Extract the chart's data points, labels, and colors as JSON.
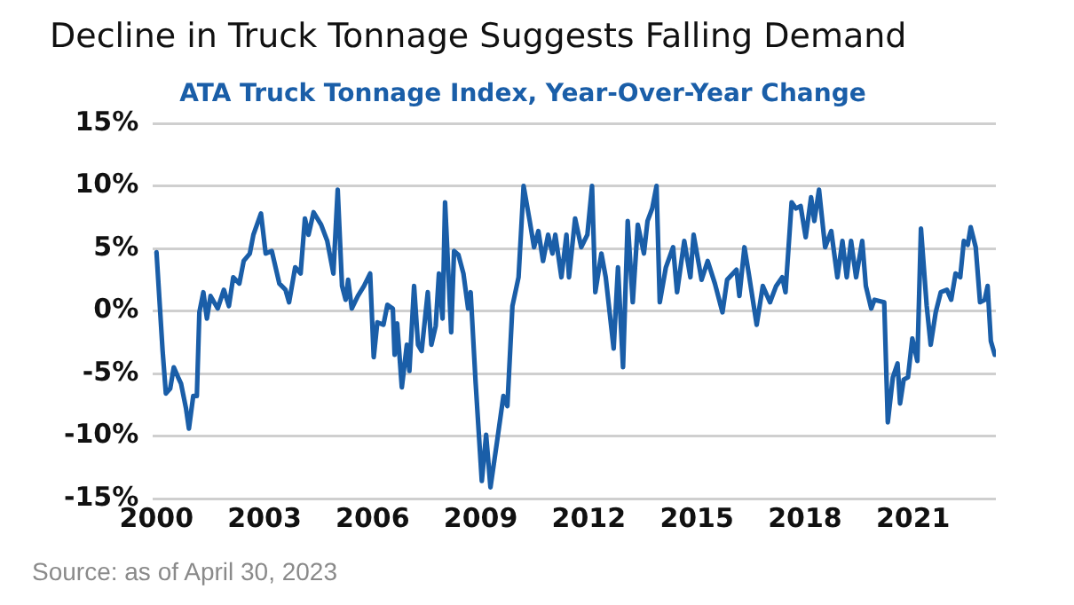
{
  "chart_data": {
    "type": "line",
    "title": "Decline in Truck Tonnage Suggests Falling Demand",
    "subtitle": "ATA Truck Tonnage Index, Year-Over-Year Change",
    "annotations": [
      "Source: as of April 30, 2023"
    ],
    "xlim": [
      1999.9,
      2023.3
    ],
    "xticks": [
      2000,
      2003,
      2006,
      2009,
      2012,
      2015,
      2018,
      2021
    ],
    "ylim": [
      -15,
      15
    ],
    "yticks": [
      {
        "value": -15,
        "label": "-15%"
      },
      {
        "value": -10,
        "label": "-10%"
      },
      {
        "value": -5,
        "label": "-5%"
      },
      {
        "value": 0,
        "label": "0%"
      },
      {
        "value": 5,
        "label": "5%"
      },
      {
        "value": 10,
        "label": "10%"
      },
      {
        "value": 15,
        "label": "15%"
      }
    ],
    "grid": "y",
    "legend": false,
    "marker": "none",
    "line_style": "solid",
    "x": [
      2000.0,
      2000.17,
      2000.26,
      2000.38,
      2000.48,
      2000.6,
      2000.68,
      2000.82,
      2000.9,
      2001.02,
      2001.12,
      2001.19,
      2001.3,
      2001.4,
      2001.5,
      2001.7,
      2001.87,
      2002.01,
      2002.13,
      2002.3,
      2002.42,
      2002.59,
      2002.69,
      2002.9,
      2003.03,
      2003.2,
      2003.41,
      2003.58,
      2003.68,
      2003.85,
      2004.0,
      2004.12,
      2004.22,
      2004.36,
      2004.57,
      2004.74,
      2004.91,
      2005.03,
      2005.15,
      2005.25,
      2005.32,
      2005.42,
      2005.59,
      2005.76,
      2005.93,
      2006.03,
      2006.13,
      2006.3,
      2006.41,
      2006.56,
      2006.61,
      2006.68,
      2006.81,
      2006.95,
      2007.02,
      2007.15,
      2007.26,
      2007.36,
      2007.53,
      2007.63,
      2007.75,
      2007.84,
      2007.94,
      2008.01,
      2008.18,
      2008.26,
      2008.38,
      2008.52,
      2008.65,
      2008.72,
      2008.86,
      2009.03,
      2009.15,
      2009.27,
      2009.45,
      2009.63,
      2009.74,
      2009.88,
      2010.05,
      2010.19,
      2010.36,
      2010.48,
      2010.6,
      2010.73,
      2010.87,
      2010.99,
      2011.07,
      2011.24,
      2011.38,
      2011.45,
      2011.62,
      2011.79,
      2011.96,
      2012.09,
      2012.18,
      2012.35,
      2012.47,
      2012.69,
      2012.81,
      2012.95,
      2013.08,
      2013.22,
      2013.36,
      2013.53,
      2013.63,
      2013.76,
      2013.88,
      2013.97,
      2014.14,
      2014.34,
      2014.45,
      2014.65,
      2014.82,
      2014.91,
      2015.13,
      2015.3,
      2015.5,
      2015.71,
      2015.84,
      2016.1,
      2016.18,
      2016.32,
      2016.44,
      2016.66,
      2016.83,
      2017.03,
      2017.2,
      2017.37,
      2017.46,
      2017.63,
      2017.75,
      2017.88,
      2018.02,
      2018.17,
      2018.26,
      2018.39,
      2018.56,
      2018.73,
      2018.9,
      2019.04,
      2019.16,
      2019.28,
      2019.42,
      2019.59,
      2019.69,
      2019.84,
      2019.93,
      2020.2,
      2020.3,
      2020.44,
      2020.57,
      2020.64,
      2020.74,
      2020.86,
      2020.98,
      2021.12,
      2021.22,
      2021.38,
      2021.49,
      2021.63,
      2021.77,
      2021.94,
      2022.06,
      2022.18,
      2022.31,
      2022.41,
      2022.52,
      2022.6,
      2022.74,
      2022.86,
      2022.99,
      2023.07,
      2023.16,
      2023.27
    ],
    "series": [
      {
        "color": "#1a5ea8",
        "values": [
          4.7,
          -3.2,
          -6.6,
          -6.2,
          -4.5,
          -5.3,
          -5.8,
          -7.8,
          -9.4,
          -6.8,
          -6.8,
          -0.1,
          1.5,
          -0.6,
          1.2,
          0.2,
          1.7,
          0.4,
          2.7,
          2.2,
          4.0,
          4.6,
          6.1,
          7.8,
          4.6,
          4.8,
          2.2,
          1.7,
          0.7,
          3.5,
          3.0,
          7.4,
          6.1,
          7.9,
          6.9,
          5.6,
          3.0,
          9.7,
          2.0,
          0.9,
          2.5,
          0.2,
          1.2,
          2.0,
          3.0,
          -3.7,
          -0.9,
          -1.1,
          0.5,
          0.2,
          -3.5,
          -1.0,
          -6.1,
          -2.7,
          -4.8,
          2.0,
          -2.7,
          -3.2,
          1.5,
          -2.7,
          -1.2,
          3.0,
          -0.6,
          8.7,
          -1.7,
          4.8,
          4.5,
          3.0,
          0.2,
          1.5,
          -5.8,
          -13.6,
          -9.9,
          -14.1,
          -10.5,
          -6.8,
          -7.6,
          0.4,
          2.7,
          10.0,
          7.2,
          5.1,
          6.4,
          4.0,
          6.1,
          4.6,
          6.1,
          2.7,
          6.1,
          2.7,
          7.4,
          5.1,
          6.1,
          10.0,
          1.5,
          4.6,
          2.7,
          -3.0,
          3.5,
          -4.5,
          7.2,
          0.7,
          6.9,
          4.6,
          7.2,
          8.2,
          10.0,
          0.7,
          3.5,
          5.1,
          1.5,
          5.6,
          2.7,
          6.1,
          2.5,
          4.0,
          2.2,
          -0.1,
          2.5,
          3.3,
          1.2,
          5.1,
          3.0,
          -1.1,
          2.0,
          0.7,
          2.0,
          2.7,
          1.5,
          8.7,
          8.2,
          8.4,
          5.9,
          9.1,
          7.2,
          9.7,
          5.1,
          6.4,
          2.7,
          5.6,
          2.7,
          5.6,
          2.7,
          5.6,
          2.0,
          0.2,
          0.9,
          0.7,
          -8.9,
          -5.3,
          -4.2,
          -7.4,
          -5.5,
          -5.3,
          -2.2,
          -4.0,
          6.6,
          0.4,
          -2.7,
          -0.1,
          1.5,
          1.7,
          0.9,
          3.0,
          2.7,
          5.6,
          5.3,
          6.7,
          5.1,
          0.7,
          0.9,
          2.0,
          -2.4,
          -3.5
        ]
      }
    ]
  }
}
